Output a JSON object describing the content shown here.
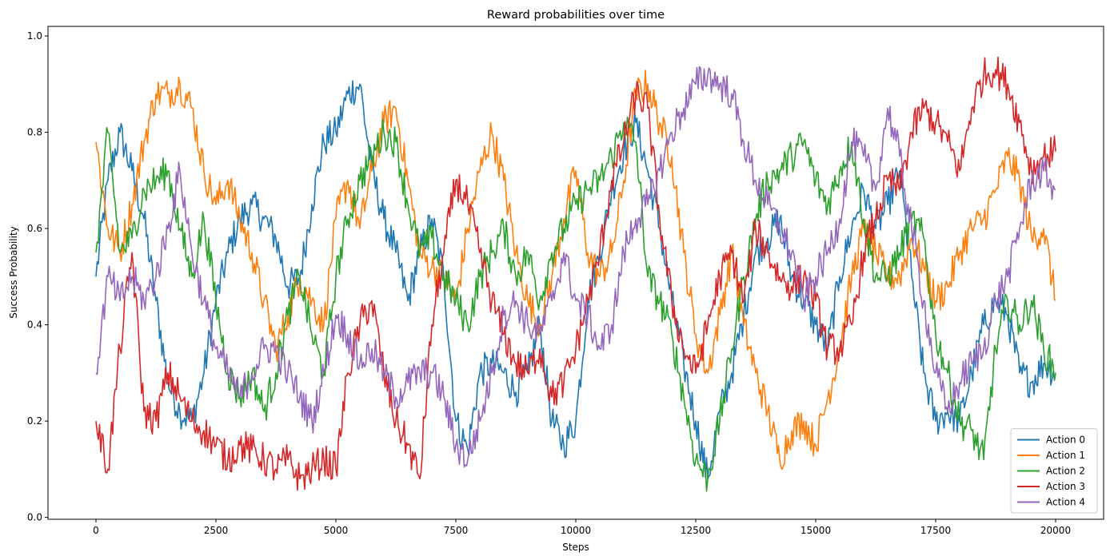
{
  "chart_data": {
    "type": "line",
    "title": "Reward probabilities over time",
    "xlabel": "Steps",
    "ylabel": "Success Probability",
    "xlim": [
      -1000,
      21000
    ],
    "ylim": [
      -0.004,
      1.02
    ],
    "xticks": [
      0,
      2500,
      5000,
      7500,
      10000,
      12500,
      15000,
      17500,
      20000
    ],
    "xtick_labels": [
      "0",
      "2500",
      "5000",
      "7500",
      "10000",
      "12500",
      "15000",
      "17500",
      "20000"
    ],
    "yticks": [
      0.0,
      0.2,
      0.4,
      0.6,
      0.8,
      1.0
    ],
    "ytick_labels": [
      "0.0",
      "0.2",
      "0.4",
      "0.6",
      "0.8",
      "1.0"
    ],
    "grid": false,
    "legend_position": "lower-right",
    "series": [
      {
        "name": "Action 0",
        "color": "#1f77b4",
        "x": [
          0,
          250,
          500,
          750,
          1000,
          1250,
          1500,
          1750,
          2000,
          2250,
          2500,
          2750,
          3000,
          3250,
          3500,
          3750,
          4000,
          4250,
          4500,
          4750,
          5000,
          5250,
          5500,
          5750,
          6000,
          6250,
          6500,
          6750,
          7000,
          7250,
          7500,
          7750,
          8000,
          8250,
          8500,
          8750,
          9000,
          9250,
          9500,
          9750,
          10000,
          10250,
          10500,
          10750,
          11000,
          11250,
          11500,
          11750,
          12000,
          12250,
          12500,
          12750,
          13000,
          13250,
          13500,
          13750,
          14000,
          14250,
          14500,
          14750,
          15000,
          15250,
          15500,
          15750,
          16000,
          16250,
          16500,
          16750,
          17000,
          17250,
          17500,
          17750,
          18000,
          18250,
          18500,
          18750,
          19000,
          19250,
          19500,
          19750,
          20000
        ],
        "values": [
          0.5,
          0.7,
          0.8,
          0.72,
          0.62,
          0.45,
          0.28,
          0.22,
          0.2,
          0.3,
          0.45,
          0.55,
          0.62,
          0.65,
          0.62,
          0.58,
          0.48,
          0.5,
          0.65,
          0.78,
          0.8,
          0.88,
          0.9,
          0.72,
          0.62,
          0.55,
          0.45,
          0.55,
          0.62,
          0.5,
          0.2,
          0.14,
          0.3,
          0.32,
          0.3,
          0.26,
          0.3,
          0.4,
          0.2,
          0.15,
          0.2,
          0.45,
          0.55,
          0.68,
          0.76,
          0.82,
          0.72,
          0.6,
          0.45,
          0.32,
          0.2,
          0.08,
          0.22,
          0.3,
          0.42,
          0.55,
          0.58,
          0.62,
          0.5,
          0.45,
          0.4,
          0.35,
          0.5,
          0.6,
          0.68,
          0.6,
          0.65,
          0.72,
          0.5,
          0.3,
          0.2,
          0.22,
          0.2,
          0.3,
          0.4,
          0.45,
          0.42,
          0.3,
          0.28,
          0.32,
          0.3
        ]
      },
      {
        "name": "Action 1",
        "color": "#ff7f0e",
        "x": [
          0,
          250,
          500,
          750,
          1000,
          1250,
          1500,
          1750,
          2000,
          2250,
          2500,
          2750,
          3000,
          3250,
          3500,
          3750,
          4000,
          4250,
          4500,
          4750,
          5000,
          5250,
          5500,
          5750,
          6000,
          6250,
          6500,
          6750,
          7000,
          7250,
          7500,
          7750,
          8000,
          8250,
          8500,
          8750,
          9000,
          9250,
          9500,
          9750,
          10000,
          10250,
          10500,
          10750,
          11000,
          11250,
          11500,
          11750,
          12000,
          12250,
          12500,
          12750,
          13000,
          13250,
          13500,
          13750,
          14000,
          14250,
          14500,
          14750,
          15000,
          15250,
          15500,
          15750,
          16000,
          16250,
          16500,
          16750,
          17000,
          17250,
          17500,
          17750,
          18000,
          18250,
          18500,
          18750,
          19000,
          19250,
          19500,
          19750,
          20000
        ],
        "values": [
          0.78,
          0.6,
          0.55,
          0.65,
          0.78,
          0.88,
          0.88,
          0.9,
          0.85,
          0.72,
          0.65,
          0.7,
          0.62,
          0.55,
          0.45,
          0.35,
          0.42,
          0.5,
          0.45,
          0.4,
          0.62,
          0.7,
          0.6,
          0.72,
          0.82,
          0.85,
          0.7,
          0.55,
          0.52,
          0.5,
          0.45,
          0.6,
          0.72,
          0.8,
          0.7,
          0.55,
          0.45,
          0.4,
          0.5,
          0.62,
          0.72,
          0.55,
          0.5,
          0.55,
          0.7,
          0.88,
          0.9,
          0.82,
          0.75,
          0.55,
          0.38,
          0.3,
          0.42,
          0.55,
          0.4,
          0.3,
          0.22,
          0.12,
          0.18,
          0.2,
          0.15,
          0.25,
          0.35,
          0.5,
          0.6,
          0.55,
          0.5,
          0.5,
          0.58,
          0.52,
          0.45,
          0.48,
          0.55,
          0.6,
          0.62,
          0.68,
          0.75,
          0.7,
          0.58,
          0.6,
          0.45
        ]
      },
      {
        "name": "Action 2",
        "color": "#2ca02c",
        "x": [
          0,
          250,
          500,
          750,
          1000,
          1250,
          1500,
          1750,
          2000,
          2250,
          2500,
          2750,
          3000,
          3250,
          3500,
          3750,
          4000,
          4250,
          4500,
          4750,
          5000,
          5250,
          5500,
          5750,
          6000,
          6250,
          6500,
          6750,
          7000,
          7250,
          7500,
          7750,
          8000,
          8250,
          8500,
          8750,
          9000,
          9250,
          9500,
          9750,
          10000,
          10250,
          10500,
          10750,
          11000,
          11250,
          11500,
          11750,
          12000,
          12250,
          12500,
          12750,
          13000,
          13250,
          13500,
          13750,
          14000,
          14250,
          14500,
          14750,
          15000,
          15250,
          15500,
          15750,
          16000,
          16250,
          16500,
          16750,
          17000,
          17250,
          17500,
          17750,
          18000,
          18250,
          18500,
          18750,
          19000,
          19250,
          19500,
          19750,
          20000
        ],
        "values": [
          0.55,
          0.8,
          0.55,
          0.58,
          0.68,
          0.7,
          0.72,
          0.6,
          0.5,
          0.62,
          0.45,
          0.3,
          0.25,
          0.3,
          0.22,
          0.3,
          0.42,
          0.5,
          0.38,
          0.3,
          0.5,
          0.62,
          0.7,
          0.75,
          0.8,
          0.78,
          0.65,
          0.55,
          0.58,
          0.5,
          0.45,
          0.4,
          0.5,
          0.55,
          0.6,
          0.5,
          0.55,
          0.45,
          0.55,
          0.6,
          0.65,
          0.68,
          0.7,
          0.75,
          0.82,
          0.78,
          0.5,
          0.45,
          0.38,
          0.25,
          0.12,
          0.08,
          0.2,
          0.35,
          0.5,
          0.62,
          0.7,
          0.72,
          0.75,
          0.78,
          0.7,
          0.65,
          0.72,
          0.78,
          0.62,
          0.5,
          0.5,
          0.55,
          0.62,
          0.58,
          0.38,
          0.3,
          0.2,
          0.18,
          0.12,
          0.35,
          0.45,
          0.4,
          0.45,
          0.35,
          0.3
        ]
      },
      {
        "name": "Action 3",
        "color": "#d62728",
        "x": [
          0,
          250,
          500,
          750,
          1000,
          1250,
          1500,
          1750,
          2000,
          2250,
          2500,
          2750,
          3000,
          3250,
          3500,
          3750,
          4000,
          4250,
          4500,
          4750,
          5000,
          5250,
          5500,
          5750,
          6000,
          6250,
          6500,
          6750,
          7000,
          7250,
          7500,
          7750,
          8000,
          8250,
          8500,
          8750,
          9000,
          9250,
          9500,
          9750,
          10000,
          10250,
          10500,
          10750,
          11000,
          11250,
          11500,
          11750,
          12000,
          12250,
          12500,
          12750,
          13000,
          13250,
          13500,
          13750,
          14000,
          14250,
          14500,
          14750,
          15000,
          15250,
          15500,
          15750,
          16000,
          16250,
          16500,
          16750,
          17000,
          17250,
          17500,
          17750,
          18000,
          18250,
          18500,
          18750,
          19000,
          19250,
          19500,
          19750,
          20000
        ],
        "values": [
          0.2,
          0.1,
          0.35,
          0.55,
          0.22,
          0.2,
          0.3,
          0.25,
          0.2,
          0.18,
          0.15,
          0.12,
          0.15,
          0.14,
          0.12,
          0.1,
          0.12,
          0.08,
          0.1,
          0.12,
          0.1,
          0.3,
          0.4,
          0.45,
          0.3,
          0.2,
          0.15,
          0.08,
          0.4,
          0.55,
          0.7,
          0.65,
          0.55,
          0.45,
          0.38,
          0.32,
          0.3,
          0.35,
          0.25,
          0.28,
          0.35,
          0.45,
          0.55,
          0.7,
          0.78,
          0.88,
          0.85,
          0.62,
          0.45,
          0.35,
          0.3,
          0.4,
          0.5,
          0.55,
          0.45,
          0.6,
          0.55,
          0.5,
          0.48,
          0.5,
          0.45,
          0.35,
          0.35,
          0.4,
          0.55,
          0.62,
          0.7,
          0.68,
          0.8,
          0.85,
          0.82,
          0.78,
          0.72,
          0.85,
          0.92,
          0.93,
          0.9,
          0.82,
          0.72,
          0.75,
          0.76
        ]
      },
      {
        "name": "Action 4",
        "color": "#9467bd",
        "x": [
          0,
          250,
          500,
          750,
          1000,
          1250,
          1500,
          1750,
          2000,
          2250,
          2500,
          2750,
          3000,
          3250,
          3500,
          3750,
          4000,
          4250,
          4500,
          4750,
          5000,
          5250,
          5500,
          5750,
          6000,
          6250,
          6500,
          6750,
          7000,
          7250,
          7500,
          7750,
          8000,
          8250,
          8500,
          8750,
          9000,
          9250,
          9500,
          9750,
          10000,
          10250,
          10500,
          10750,
          11000,
          11250,
          11500,
          11750,
          12000,
          12250,
          12500,
          12750,
          13000,
          13250,
          13500,
          13750,
          14000,
          14250,
          14500,
          14750,
          15000,
          15250,
          15500,
          15750,
          16000,
          16250,
          16500,
          16750,
          17000,
          17250,
          17500,
          17750,
          18000,
          18250,
          18500,
          18750,
          19000,
          19250,
          19500,
          19750,
          20000
        ],
        "values": [
          0.3,
          0.5,
          0.45,
          0.5,
          0.45,
          0.5,
          0.6,
          0.72,
          0.55,
          0.45,
          0.35,
          0.3,
          0.25,
          0.3,
          0.35,
          0.35,
          0.3,
          0.25,
          0.2,
          0.3,
          0.42,
          0.38,
          0.32,
          0.35,
          0.3,
          0.25,
          0.28,
          0.3,
          0.3,
          0.25,
          0.15,
          0.12,
          0.2,
          0.3,
          0.42,
          0.45,
          0.4,
          0.38,
          0.45,
          0.55,
          0.45,
          0.42,
          0.35,
          0.4,
          0.55,
          0.62,
          0.65,
          0.72,
          0.8,
          0.85,
          0.9,
          0.92,
          0.9,
          0.88,
          0.78,
          0.7,
          0.65,
          0.6,
          0.55,
          0.45,
          0.5,
          0.55,
          0.62,
          0.78,
          0.75,
          0.68,
          0.85,
          0.75,
          0.6,
          0.45,
          0.3,
          0.22,
          0.28,
          0.32,
          0.35,
          0.45,
          0.5,
          0.6,
          0.7,
          0.72,
          0.68
        ]
      }
    ]
  }
}
